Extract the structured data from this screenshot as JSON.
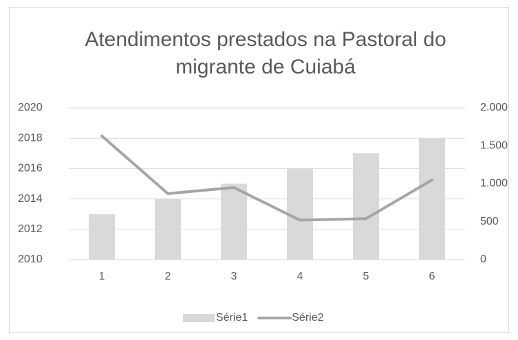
{
  "chart_data": {
    "type": "bar-line",
    "title": "Atendimentos prestados na Pastoral do migrante de Cuiabá",
    "categories": [
      1,
      2,
      3,
      4,
      5,
      6
    ],
    "series": [
      {
        "name": "Série1",
        "type": "bar",
        "color": "#d9d9d9",
        "values": [
          2013,
          2014,
          2015,
          2016,
          2017,
          2018
        ]
      },
      {
        "name": "Série2",
        "type": "line",
        "color": "#a5a5a5",
        "axis": "y2",
        "values": [
          1630,
          870,
          950,
          520,
          540,
          1050
        ]
      }
    ],
    "ylim": [
      2010,
      2020
    ],
    "yticks": [
      2010,
      2012,
      2014,
      2016,
      2018,
      2020
    ],
    "y2lim": [
      0,
      2000
    ],
    "y2ticks": [
      0,
      500,
      {
        "value": 1000,
        "label": "1.000"
      },
      {
        "value": 1500,
        "label": "1.500"
      },
      {
        "value": 2000,
        "label": "2.000"
      }
    ],
    "grid": true,
    "legend": "bottom"
  }
}
